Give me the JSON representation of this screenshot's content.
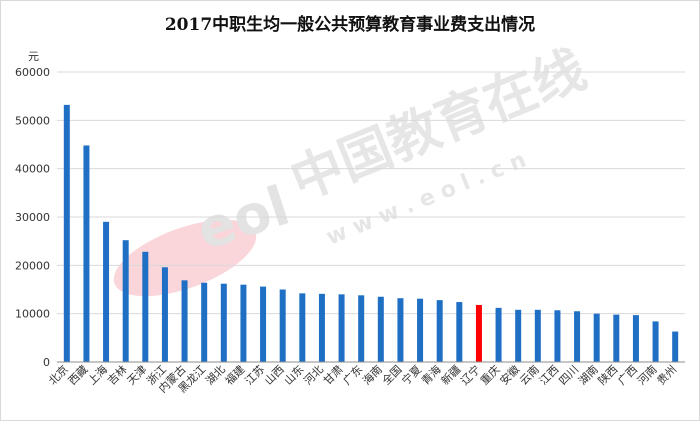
{
  "title": "2017中职生均一般公共预算教育事业费支出情况",
  "watermark": {
    "brand": "中国教育在线",
    "logo_text": "eol",
    "url": "w w w . e o l . c n"
  },
  "colors": {
    "bar": "#1f6fc5",
    "highlight": "#ff0000",
    "grid": "#d9d9d9",
    "axis": "#8c8c8c"
  },
  "chart_data": {
    "type": "bar",
    "title": "2017中职生均一般公共预算教育事业费支出情况",
    "ylabel": "元",
    "ylim": [
      0,
      60000
    ],
    "yticks": [
      0,
      10000,
      20000,
      30000,
      40000,
      50000,
      60000
    ],
    "grid": true,
    "highlight_category": "辽宁",
    "categories": [
      "北京",
      "西藏",
      "上海",
      "吉林",
      "天津",
      "浙江",
      "内蒙古",
      "黑龙江",
      "湖北",
      "福建",
      "江苏",
      "山西",
      "山东",
      "河北",
      "甘肃",
      "广东",
      "海南",
      "全国",
      "宁夏",
      "青海",
      "新疆",
      "辽宁",
      "重庆",
      "安徽",
      "云南",
      "江西",
      "四川",
      "湖南",
      "陕西",
      "广西",
      "河南",
      "贵州"
    ],
    "values": [
      53200,
      44800,
      29000,
      25200,
      22800,
      19600,
      16900,
      16400,
      16200,
      16000,
      15600,
      15000,
      14200,
      14100,
      14000,
      13800,
      13500,
      13200,
      13100,
      12800,
      12400,
      11800,
      11200,
      10800,
      10800,
      10700,
      10500,
      10000,
      9800,
      9700,
      8400,
      6300
    ]
  }
}
